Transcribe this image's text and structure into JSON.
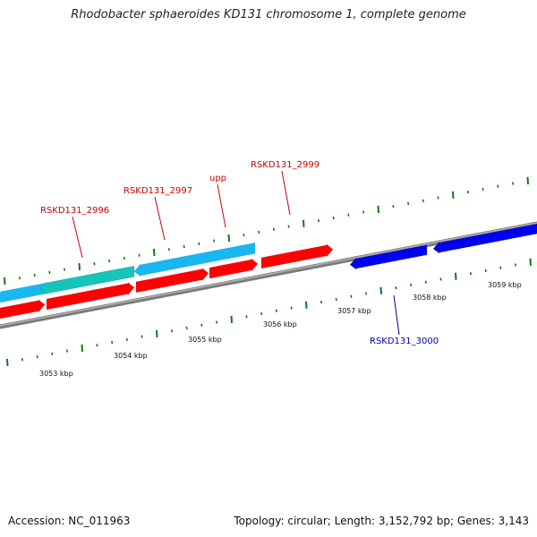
{
  "title": "Rhodobacter sphaeroides KD131 chromosome 1, complete genome",
  "footer": {
    "accession": "Accession: NC_011963",
    "summary": "Topology: circular; Length: 3,152,792 bp; Genes: 3,143"
  },
  "colors": {
    "forward_gene": "#ff0000",
    "reverse_gene": "#0000ee",
    "feature_cyan": "#17b8f0",
    "feature_teal": "#15c6b8",
    "backbone": "#888888",
    "tick": "#117711",
    "label_forward": "#cc0000",
    "label_reverse": "#0000aa"
  },
  "ruler": {
    "unit": "kbp",
    "labels": [
      "3053 kbp",
      "3054 kbp",
      "3055 kbp",
      "3056 kbp",
      "3057 kbp",
      "3058 kbp",
      "3059 kbp"
    ]
  },
  "genes": [
    {
      "id": "RSKD131_2996",
      "strand": "forward"
    },
    {
      "id": "RSKD131_2997",
      "strand": "forward"
    },
    {
      "id": "upp",
      "strand": "forward"
    },
    {
      "id": "RSKD131_2999",
      "strand": "forward"
    },
    {
      "id": "RSKD131_3000",
      "strand": "reverse"
    }
  ]
}
